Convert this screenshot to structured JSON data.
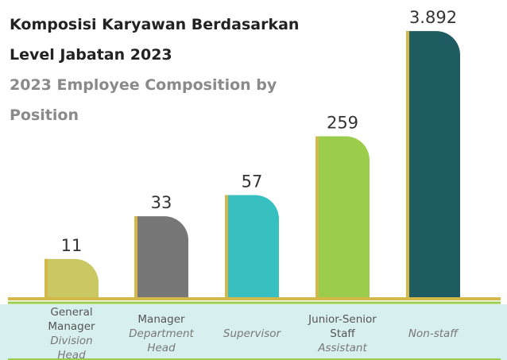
{
  "chart_data": {
    "type": "bar",
    "title": "Komposisi Karyawan Berdasarkan Level Jabatan 2023",
    "subtitle": "2023 Employee Composition by Position",
    "categories": [
      "General Manager",
      "Manager",
      null,
      "Junior-Senior Staff",
      null
    ],
    "categories_en": [
      "Division Head",
      "Department Head",
      "Supervisor",
      "Assistant",
      "Non-staff"
    ],
    "values": [
      11,
      33,
      57,
      259,
      3892
    ],
    "value_labels": [
      "11",
      "33",
      "57",
      "259",
      "3.892"
    ],
    "colors": [
      "#c9c862",
      "#777777",
      "#37c0bf",
      "#9bcc4b",
      "#1f5c61"
    ]
  }
}
